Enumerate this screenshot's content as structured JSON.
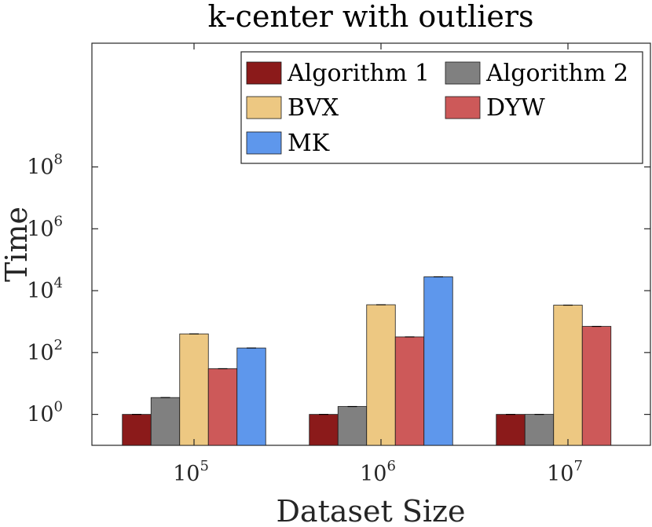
{
  "chart_data": {
    "type": "bar",
    "title": "k-center with outliers",
    "xlabel": "Dataset Size",
    "ylabel": "Time",
    "yscale": "log",
    "ylim": [
      0.1,
      1000000000000
    ],
    "categories": [
      {
        "base": "10",
        "exp": "5"
      },
      {
        "base": "10",
        "exp": "6"
      },
      {
        "base": "10",
        "exp": "7"
      }
    ],
    "yticks": [
      {
        "value": 1,
        "base": "10",
        "exp": "0"
      },
      {
        "value": 100,
        "base": "10",
        "exp": "2"
      },
      {
        "value": 10000,
        "base": "10",
        "exp": "4"
      },
      {
        "value": 1000000,
        "base": "10",
        "exp": "6"
      },
      {
        "value": 100000000,
        "base": "10",
        "exp": "8"
      }
    ],
    "series": [
      {
        "name": "Algorithm 1",
        "color": "#8B1A1A",
        "values": [
          1,
          1,
          1
        ]
      },
      {
        "name": "Algorithm 2",
        "color": "#808080",
        "values": [
          3.5,
          1.8,
          1.0
        ]
      },
      {
        "name": "BVX",
        "color": "#EDC882",
        "values": [
          400,
          3500,
          3400
        ]
      },
      {
        "name": "DYW",
        "color": "#CD5959",
        "values": [
          30,
          320,
          700
        ]
      },
      {
        "name": "MK",
        "color": "#5E97EC",
        "values": [
          140,
          28000,
          null
        ]
      }
    ],
    "legend": "top-right",
    "grid": false
  }
}
